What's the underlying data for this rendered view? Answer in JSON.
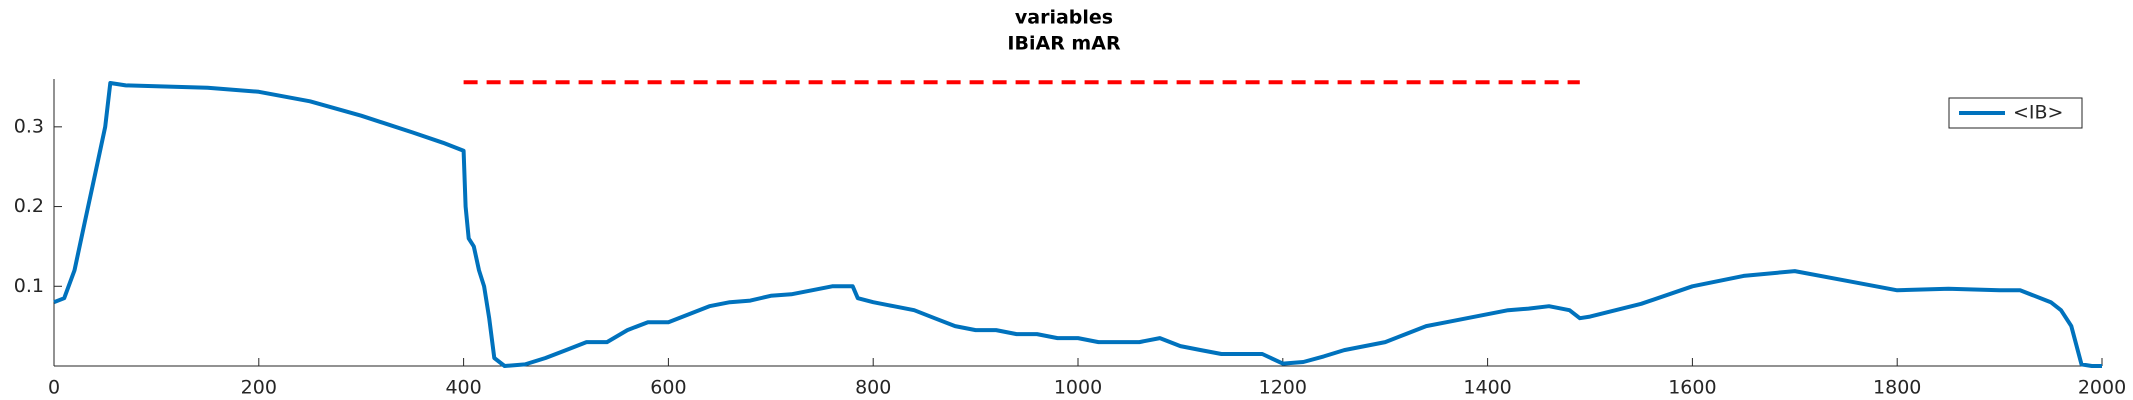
{
  "chart_data": {
    "type": "line",
    "title": "variables",
    "subtitle": "IBiAR mAR",
    "xlim": [
      0,
      2000
    ],
    "xticks": [
      0,
      200,
      400,
      600,
      800,
      1000,
      1200,
      1400,
      1600,
      1800,
      2000
    ],
    "ylim": [
      0,
      0.36
    ],
    "yticks": [
      0.1,
      0.2,
      0.3
    ],
    "legend": "upper right",
    "series": [
      {
        "name": "<IB>",
        "color": "#0072bd",
        "style": "solid",
        "x": [
          0,
          10,
          20,
          30,
          40,
          50,
          55,
          70,
          100,
          150,
          200,
          250,
          300,
          350,
          380,
          400,
          402,
          405,
          410,
          415,
          420,
          425,
          430,
          440,
          460,
          480,
          500,
          520,
          540,
          560,
          580,
          600,
          620,
          640,
          660,
          680,
          700,
          720,
          740,
          760,
          780,
          785,
          800,
          820,
          840,
          860,
          880,
          900,
          920,
          940,
          960,
          980,
          1000,
          1020,
          1040,
          1060,
          1080,
          1100,
          1120,
          1140,
          1160,
          1180,
          1200,
          1220,
          1240,
          1260,
          1280,
          1300,
          1320,
          1340,
          1360,
          1380,
          1400,
          1420,
          1440,
          1460,
          1480,
          1490,
          1500,
          1550,
          1600,
          1650,
          1700,
          1750,
          1800,
          1850,
          1900,
          1920,
          1950,
          1960,
          1970,
          1980,
          1990,
          2000
        ],
        "values": [
          0.08,
          0.085,
          0.12,
          0.18,
          0.24,
          0.3,
          0.355,
          0.352,
          0.351,
          0.349,
          0.344,
          0.332,
          0.314,
          0.293,
          0.28,
          0.27,
          0.2,
          0.16,
          0.15,
          0.12,
          0.1,
          0.06,
          0.01,
          0.0,
          0.002,
          0.01,
          0.02,
          0.03,
          0.03,
          0.045,
          0.055,
          0.055,
          0.065,
          0.075,
          0.08,
          0.082,
          0.088,
          0.09,
          0.095,
          0.1,
          0.1,
          0.085,
          0.08,
          0.075,
          0.07,
          0.06,
          0.05,
          0.045,
          0.045,
          0.04,
          0.04,
          0.035,
          0.035,
          0.03,
          0.03,
          0.03,
          0.035,
          0.025,
          0.02,
          0.015,
          0.015,
          0.015,
          0.003,
          0.005,
          0.012,
          0.02,
          0.025,
          0.03,
          0.04,
          0.05,
          0.055,
          0.06,
          0.065,
          0.07,
          0.072,
          0.075,
          0.07,
          0.06,
          0.062,
          0.078,
          0.1,
          0.113,
          0.119,
          0.107,
          0.095,
          0.097,
          0.095,
          0.095,
          0.08,
          0.07,
          0.05,
          0.002,
          0,
          0
        ]
      },
      {
        "color": "#ff0000",
        "style": "dashed",
        "x": [
          400,
          1490
        ],
        "values": [
          0.356,
          0.356
        ]
      }
    ]
  }
}
